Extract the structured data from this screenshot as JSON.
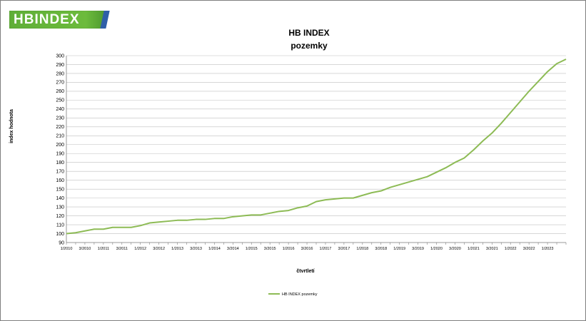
{
  "logo": {
    "text": "HBINDEX",
    "brand_green": "#6cbb3c",
    "brand_blue": "#2f5fa8"
  },
  "chart_data": {
    "type": "line",
    "title": "HB INDEX",
    "subtitle": "pozemky",
    "xlabel": "čtvrtletí",
    "ylabel": "index hodnota",
    "ylim": [
      90,
      300
    ],
    "ytick_step": 10,
    "grid": true,
    "legend_position": "bottom",
    "line_color": "#8dbb55",
    "x_tick_labels": [
      "1/2010",
      "3/2010",
      "1/2011",
      "3/2011",
      "1/2012",
      "3/2012",
      "1/2013",
      "3/2013",
      "1/2014",
      "3/2014",
      "1/2015",
      "3/2015",
      "1/2016",
      "3/2016",
      "1/2017",
      "3/2017",
      "1/2018",
      "3/2018",
      "1/2019",
      "3/2019",
      "1/2020",
      "3/2020",
      "1/2021",
      "3/2021",
      "1/2022",
      "3/2022",
      "1/2023"
    ],
    "series": [
      {
        "name": "HB INDEX pozemky",
        "values": [
          100,
          101,
          103,
          105,
          105,
          107,
          107,
          107,
          109,
          112,
          113,
          114,
          115,
          115,
          116,
          116,
          117,
          117,
          119,
          120,
          121,
          121,
          123,
          125,
          126,
          129,
          131,
          136,
          138,
          139,
          140,
          140,
          143,
          146,
          148,
          152,
          155,
          158,
          161,
          164,
          169,
          174,
          180,
          185,
          194,
          204,
          213,
          224,
          236,
          248,
          260,
          271,
          282,
          291,
          296
        ]
      }
    ]
  }
}
